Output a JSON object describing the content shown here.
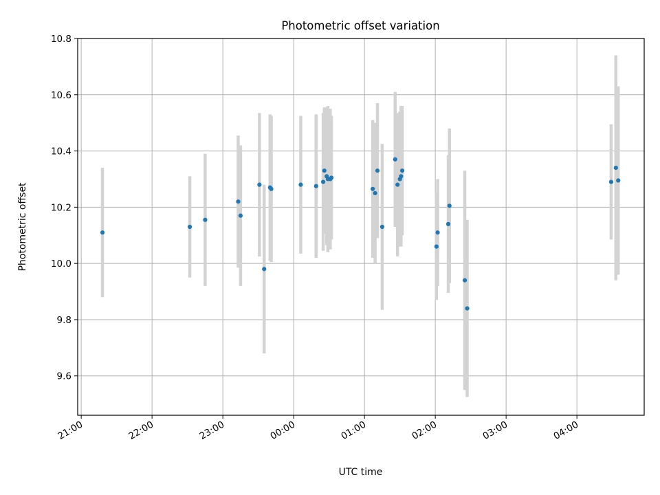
{
  "chart_data": {
    "type": "scatter",
    "title": "Photometric offset variation",
    "xlabel": "UTC time",
    "ylabel": "Photometric offset",
    "x_axis": "time",
    "x_tick_labels": [
      "21:00",
      "22:00",
      "23:00",
      "00:00",
      "01:00",
      "02:00",
      "03:00",
      "04:00"
    ],
    "y_tick_labels": [
      "9.6",
      "9.8",
      "10.0",
      "10.2",
      "10.4",
      "10.6",
      "10.8"
    ],
    "ylim": [
      9.46,
      10.8
    ],
    "xlim": [
      "20:57",
      "04:57"
    ],
    "grid": true,
    "error_bar_color": "#d3d3d3",
    "marker_color": "#1f77b4",
    "points": [
      {
        "t": "21:18",
        "y": 10.11,
        "err": 0.23
      },
      {
        "t": "22:32",
        "y": 10.13,
        "err": 0.18
      },
      {
        "t": "22:45",
        "y": 10.155,
        "err": 0.235
      },
      {
        "t": "23:13",
        "y": 10.22,
        "err": 0.235
      },
      {
        "t": "23:15",
        "y": 10.17,
        "err": 0.25
      },
      {
        "t": "23:31",
        "y": 10.28,
        "err": 0.255
      },
      {
        "t": "23:35",
        "y": 9.98,
        "err": 0.3
      },
      {
        "t": "23:40",
        "y": 10.27,
        "err": 0.26
      },
      {
        "t": "23:41",
        "y": 10.265,
        "err": 0.26
      },
      {
        "t": "00:06",
        "y": 10.28,
        "err": 0.245
      },
      {
        "t": "00:19",
        "y": 10.275,
        "err": 0.255
      },
      {
        "t": "00:25",
        "y": 10.29,
        "err": 0.245
      },
      {
        "t": "00:26",
        "y": 10.33,
        "err": 0.225
      },
      {
        "t": "00:28",
        "y": 10.31,
        "err": 0.245
      },
      {
        "t": "00:29",
        "y": 10.3,
        "err": 0.26
      },
      {
        "t": "00:31",
        "y": 10.3,
        "err": 0.25
      },
      {
        "t": "00:32",
        "y": 10.305,
        "err": 0.22
      },
      {
        "t": "01:07",
        "y": 10.265,
        "err": 0.245
      },
      {
        "t": "01:09",
        "y": 10.25,
        "err": 0.25
      },
      {
        "t": "01:11",
        "y": 10.33,
        "err": 0.24
      },
      {
        "t": "01:15",
        "y": 10.13,
        "err": 0.295
      },
      {
        "t": "01:26",
        "y": 10.37,
        "err": 0.24
      },
      {
        "t": "01:28",
        "y": 10.28,
        "err": 0.255
      },
      {
        "t": "01:30",
        "y": 10.3,
        "err": 0.24
      },
      {
        "t": "01:31",
        "y": 10.31,
        "err": 0.25
      },
      {
        "t": "01:32",
        "y": 10.33,
        "err": 0.23
      },
      {
        "t": "02:01",
        "y": 10.06,
        "err": 0.19
      },
      {
        "t": "02:02",
        "y": 10.11,
        "err": 0.19
      },
      {
        "t": "02:11",
        "y": 10.14,
        "err": 0.245
      },
      {
        "t": "02:12",
        "y": 10.205,
        "err": 0.275
      },
      {
        "t": "02:25",
        "y": 9.94,
        "err": 0.39
      },
      {
        "t": "02:27",
        "y": 9.84,
        "err": 0.315
      },
      {
        "t": "04:29",
        "y": 10.29,
        "err": 0.205
      },
      {
        "t": "04:33",
        "y": 10.34,
        "err": 0.4
      },
      {
        "t": "04:35",
        "y": 10.295,
        "err": 0.335
      }
    ]
  }
}
